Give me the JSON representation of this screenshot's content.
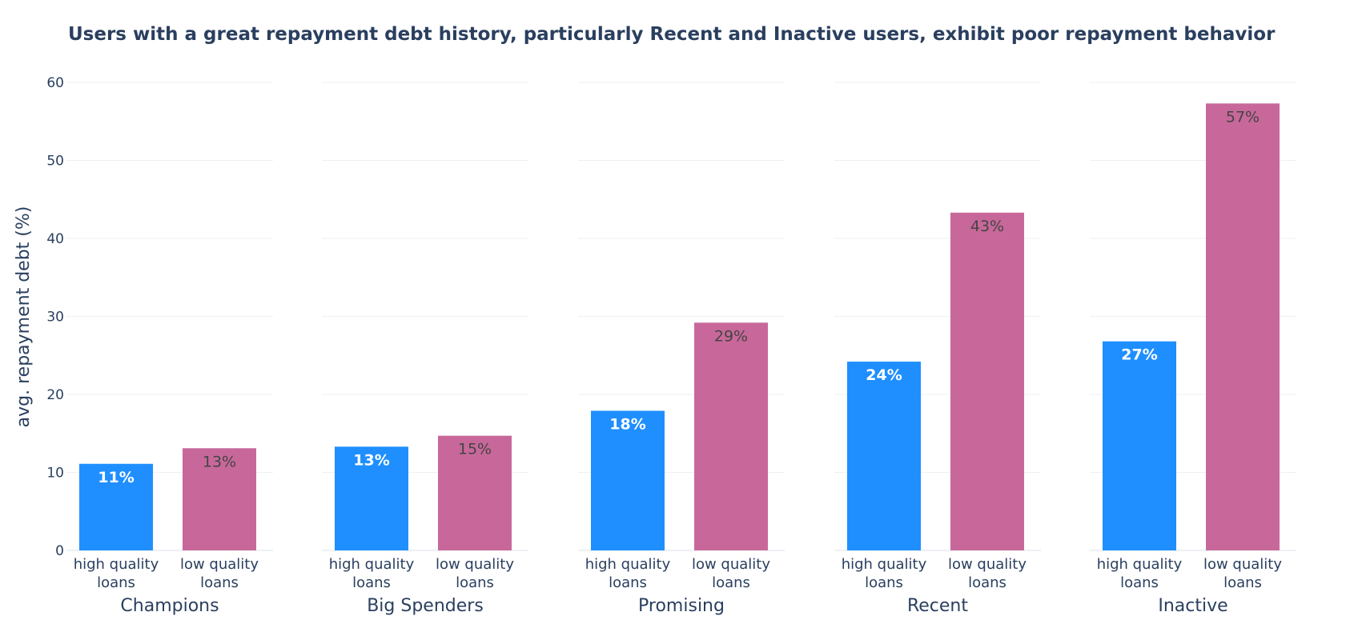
{
  "chart_data": {
    "type": "bar",
    "title": "Users with a great repayment debt history, particularly Recent and Inactive users, exhibit poor repayment behavior",
    "ylabel": "avg. repayment debt (%)",
    "ylim": [
      0,
      60
    ],
    "yticks": [
      0,
      10,
      20,
      30,
      40,
      50,
      60
    ],
    "grid": true,
    "legend": "none",
    "categories": [
      "high quality loans",
      "low quality loans"
    ],
    "panels": [
      {
        "name": "Champions",
        "values": [
          11.1,
          13.1
        ],
        "labels": [
          "11%",
          "13%"
        ]
      },
      {
        "name": "Big Spenders",
        "values": [
          13.3,
          14.7
        ],
        "labels": [
          "13%",
          "15%"
        ]
      },
      {
        "name": "Promising",
        "values": [
          17.9,
          29.2
        ],
        "labels": [
          "18%",
          "29%"
        ]
      },
      {
        "name": "Recent",
        "values": [
          24.2,
          43.3
        ],
        "labels": [
          "24%",
          "43%"
        ]
      },
      {
        "name": "Inactive",
        "values": [
          26.8,
          57.3
        ],
        "labels": [
          "27%",
          "57%"
        ]
      }
    ],
    "colors": {
      "high quality loans": "#1f8fff",
      "low quality loans": "#c8689a",
      "high_label": "#ffffff",
      "low_label": "#444444",
      "grid": "#eef0f4",
      "axis_text": "#2a3f5f"
    }
  }
}
